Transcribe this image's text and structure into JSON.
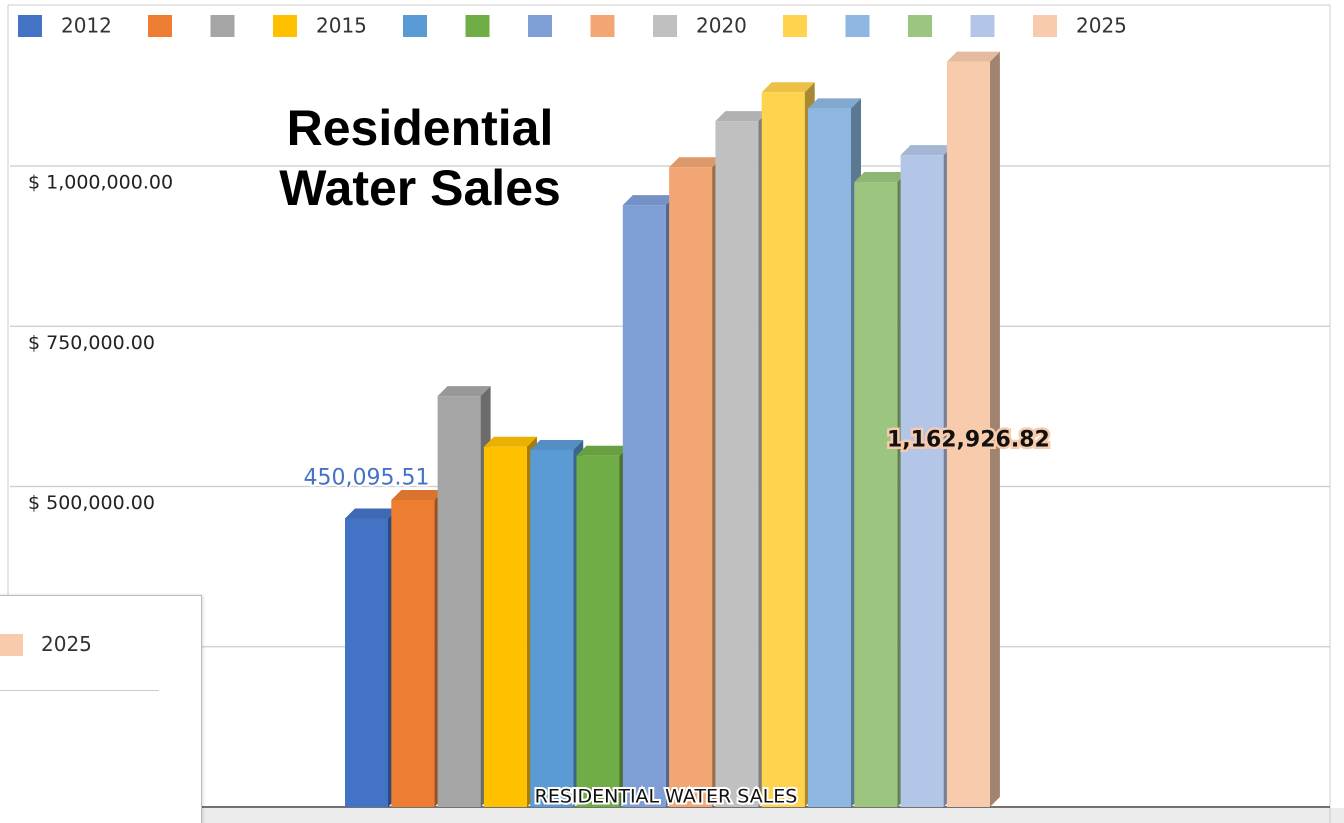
{
  "chart_data": {
    "type": "bar3d",
    "title": "Residential Water Sales",
    "categories": [
      "RESIDENTIAL WATER SALES"
    ],
    "series": [
      {
        "name": "2012",
        "color": "#4472c4",
        "values": [
          450095.51
        ],
        "value_labels": [
          "450,095.51"
        ]
      },
      {
        "name": null,
        "color": "#ed7d31",
        "values": [
          479000
        ]
      },
      {
        "name": null,
        "color": "#a5a5a5",
        "values": [
          641000
        ]
      },
      {
        "name": "2015",
        "color": "#ffc000",
        "values": [
          562000
        ]
      },
      {
        "name": null,
        "color": "#5b9bd5",
        "values": [
          557000
        ]
      },
      {
        "name": null,
        "color": "#70ad47",
        "values": [
          548000
        ]
      },
      {
        "name": null,
        "color": "#7f9ed6",
        "values": [
          939000
        ]
      },
      {
        "name": null,
        "color": "#f1a673",
        "values": [
          998000
        ]
      },
      {
        "name": "2020",
        "color": "#c0c0c0",
        "values": [
          1070000
        ]
      },
      {
        "name": null,
        "color": "#ffd34d",
        "values": [
          1115000
        ]
      },
      {
        "name": null,
        "color": "#8db7e1",
        "values": [
          1090000
        ]
      },
      {
        "name": null,
        "color": "#9cc57f",
        "values": [
          975000
        ]
      },
      {
        "name": null,
        "color": "#b4c6e7",
        "values": [
          1017000
        ]
      },
      {
        "name": "2025",
        "color": "#f8cbad",
        "values": [
          1162926.82
        ],
        "value_labels": [
          "1,162,926.82"
        ]
      }
    ],
    "ylim": [
      0,
      1259000
    ],
    "yticks": [
      {
        "value": 0,
        "label": null
      },
      {
        "value": 250000,
        "label": null
      },
      {
        "value": 500000,
        "label": "$ 500,000.00"
      },
      {
        "value": 750000,
        "label": "$ 750,000.00"
      },
      {
        "value": 1000000,
        "label": "$ 1,000,000.00"
      }
    ],
    "grid": true,
    "legend": "top"
  }
}
